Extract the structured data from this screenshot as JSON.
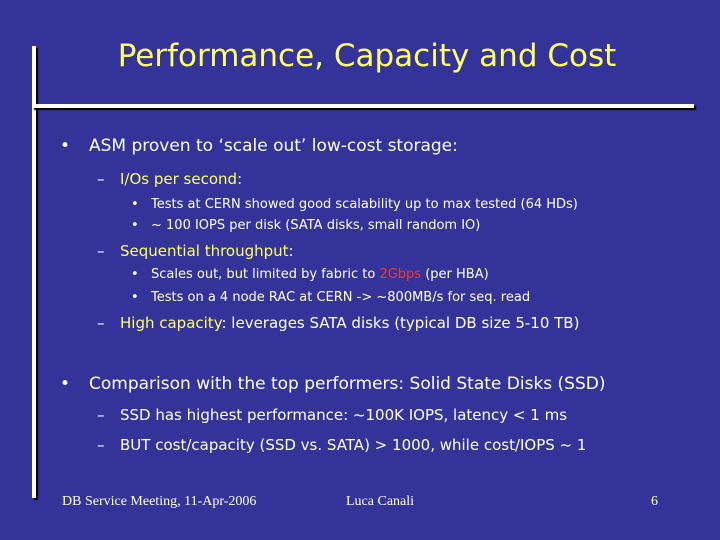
{
  "title": "Performance, Capacity and Cost",
  "bullet1": {
    "marker": "•",
    "text": "ASM proven to ‘scale out’ low-cost storage:",
    "sub": [
      {
        "marker": "–",
        "highlight": "I/Os per second",
        "rest": ":",
        "items": [
          {
            "marker": "•",
            "text": "Tests at CERN showed good scalability up to max tested (64 HDs)"
          },
          {
            "marker": "•",
            "text": "~ 100 IOPS per disk (SATA disks, small random IO)"
          }
        ]
      },
      {
        "marker": "–",
        "highlight": "Sequential throughput",
        "rest": ":",
        "items": [
          {
            "marker": "•",
            "pre": "Scales out, but limited by fabric to ",
            "red": "2Gbps",
            "post": " (per HBA)"
          },
          {
            "marker": "•",
            "text": "Tests on a 4 node RAC at CERN -> ~800MB/s for seq. read"
          }
        ]
      },
      {
        "marker": "–",
        "highlight": "High capacity",
        "rest": ": leverages SATA disks (typical DB size 5-10 TB)"
      }
    ]
  },
  "bullet2": {
    "marker": "•",
    "text": "Comparison with the top performers: Solid State Disks (SSD)",
    "sub": [
      {
        "marker": "–",
        "text": "SSD has highest performance: ~100K  IOPS, latency < 1 ms"
      },
      {
        "marker": "–",
        "text": "BUT cost/capacity (SSD vs. SATA) > 1000, while cost/IOPS ~ 1"
      }
    ]
  },
  "footer": {
    "left": "DB Service Meeting, 11-Apr-2006",
    "center": "Luca Canali",
    "page": "6"
  }
}
